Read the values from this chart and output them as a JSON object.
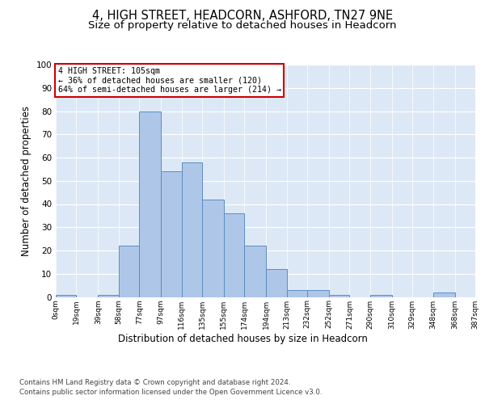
{
  "title1": "4, HIGH STREET, HEADCORN, ASHFORD, TN27 9NE",
  "title2": "Size of property relative to detached houses in Headcorn",
  "xlabel": "Distribution of detached houses by size in Headcorn",
  "ylabel": "Number of detached properties",
  "bar_values": [
    1,
    0,
    1,
    22,
    80,
    54,
    58,
    42,
    36,
    22,
    12,
    3,
    3,
    1,
    0,
    1,
    0,
    0,
    2,
    0
  ],
  "bin_edges": [
    0,
    19,
    39,
    58,
    77,
    97,
    116,
    135,
    155,
    174,
    194,
    213,
    232,
    252,
    271,
    290,
    310,
    329,
    348,
    368,
    387
  ],
  "tick_labels": [
    "0sqm",
    "19sqm",
    "39sqm",
    "58sqm",
    "77sqm",
    "97sqm",
    "116sqm",
    "135sqm",
    "155sqm",
    "174sqm",
    "194sqm",
    "213sqm",
    "232sqm",
    "252sqm",
    "271sqm",
    "290sqm",
    "310sqm",
    "329sqm",
    "348sqm",
    "368sqm",
    "387sqm"
  ],
  "bar_color": "#aec6e8",
  "bar_edge_color": "#5a8fc0",
  "annotation_line1": "4 HIGH STREET: 105sqm",
  "annotation_line2": "← 36% of detached houses are smaller (120)",
  "annotation_line3": "64% of semi-detached houses are larger (214) →",
  "annotation_box_color": "#ffffff",
  "annotation_box_edge_color": "#cc0000",
  "ylim": [
    0,
    100
  ],
  "yticks": [
    0,
    10,
    20,
    30,
    40,
    50,
    60,
    70,
    80,
    90,
    100
  ],
  "bg_color": "#dce8f5",
  "footer1": "Contains HM Land Registry data © Crown copyright and database right 2024.",
  "footer2": "Contains public sector information licensed under the Open Government Licence v3.0.",
  "title1_fontsize": 10.5,
  "title2_fontsize": 9.5,
  "xlabel_fontsize": 8.5,
  "ylabel_fontsize": 8.5
}
